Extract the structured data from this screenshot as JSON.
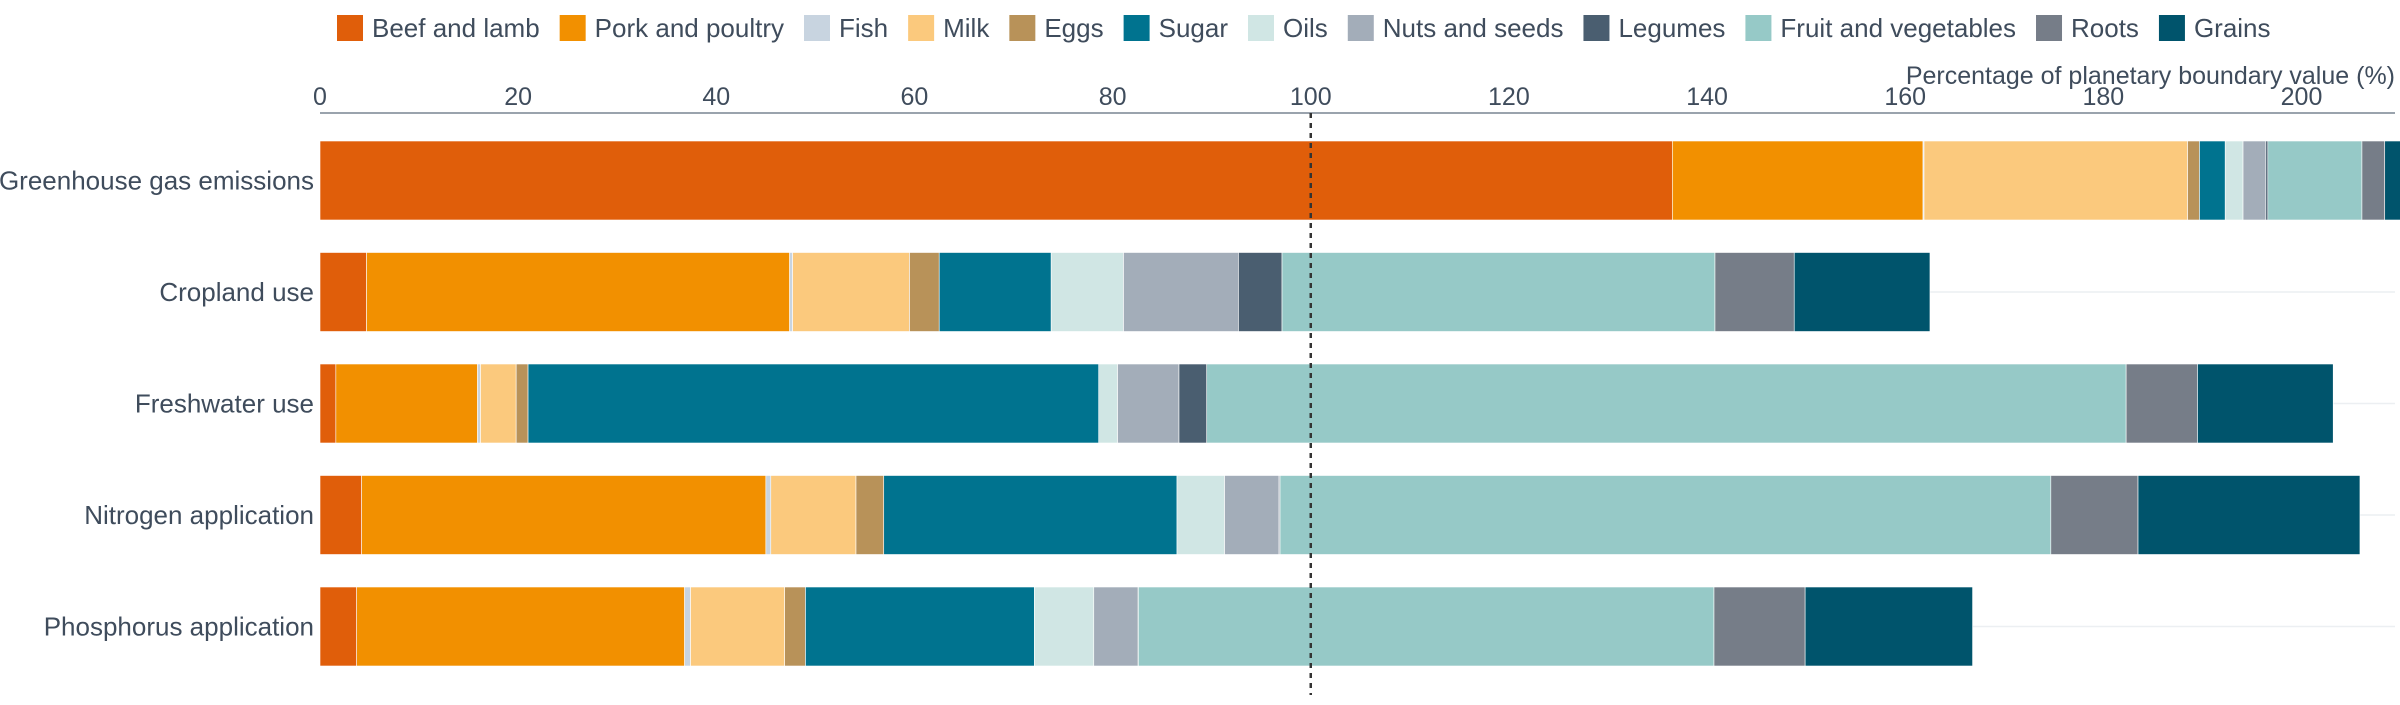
{
  "chart_data": {
    "type": "bar",
    "orientation": "horizontal",
    "stacked": true,
    "xlabel": "Percentage of planetary boundary value (%)",
    "xlim": [
      0,
      210
    ],
    "xticks": [
      0,
      20,
      40,
      60,
      80,
      100,
      120,
      140,
      160,
      180,
      200
    ],
    "reference_line": 100,
    "legend_position": "top",
    "grid": "horizontal faint",
    "categories": [
      "Greenhouse gas emissions",
      "Cropland use",
      "Freshwater use",
      "Nitrogen application",
      "Phosphorus application"
    ],
    "series": [
      {
        "name": "Beef and lamb",
        "color": "#e05e0a",
        "values": [
          136.5,
          4.7,
          1.6,
          4.2,
          3.7
        ]
      },
      {
        "name": "Pork and poultry",
        "color": "#f29000",
        "values": [
          25.3,
          42.7,
          14.3,
          40.8,
          33.1
        ]
      },
      {
        "name": "Fish",
        "color": "#c8d4e0",
        "values": [
          0.1,
          0.3,
          0.3,
          0.5,
          0.6
        ]
      },
      {
        "name": "Milk",
        "color": "#fbc97d",
        "values": [
          26.6,
          11.8,
          3.6,
          8.6,
          9.5
        ]
      },
      {
        "name": "Eggs",
        "color": "#b89259",
        "values": [
          1.2,
          3.0,
          1.2,
          2.8,
          2.1
        ]
      },
      {
        "name": "Sugar",
        "color": "#00738f",
        "values": [
          2.6,
          11.3,
          57.6,
          29.6,
          23.1
        ]
      },
      {
        "name": "Oils",
        "color": "#d0e6e4",
        "values": [
          1.8,
          7.3,
          1.9,
          4.8,
          6.0
        ]
      },
      {
        "name": "Nuts and seeds",
        "color": "#a3adb9",
        "values": [
          2.3,
          11.6,
          6.2,
          5.5,
          4.4
        ]
      },
      {
        "name": "Legumes",
        "color": "#4a5e70",
        "values": [
          0.2,
          4.4,
          2.8,
          0.1,
          0.1
        ]
      },
      {
        "name": "Fruit and vegetables",
        "color": "#96c9c7",
        "values": [
          9.5,
          43.7,
          92.8,
          77.8,
          58.1
        ]
      },
      {
        "name": "Roots",
        "color": "#767d88",
        "values": [
          2.3,
          8.0,
          7.2,
          8.8,
          9.2
        ]
      },
      {
        "name": "Grains",
        "color": "#00546c",
        "values": [
          1.9,
          13.7,
          13.7,
          22.4,
          16.9
        ]
      }
    ]
  }
}
